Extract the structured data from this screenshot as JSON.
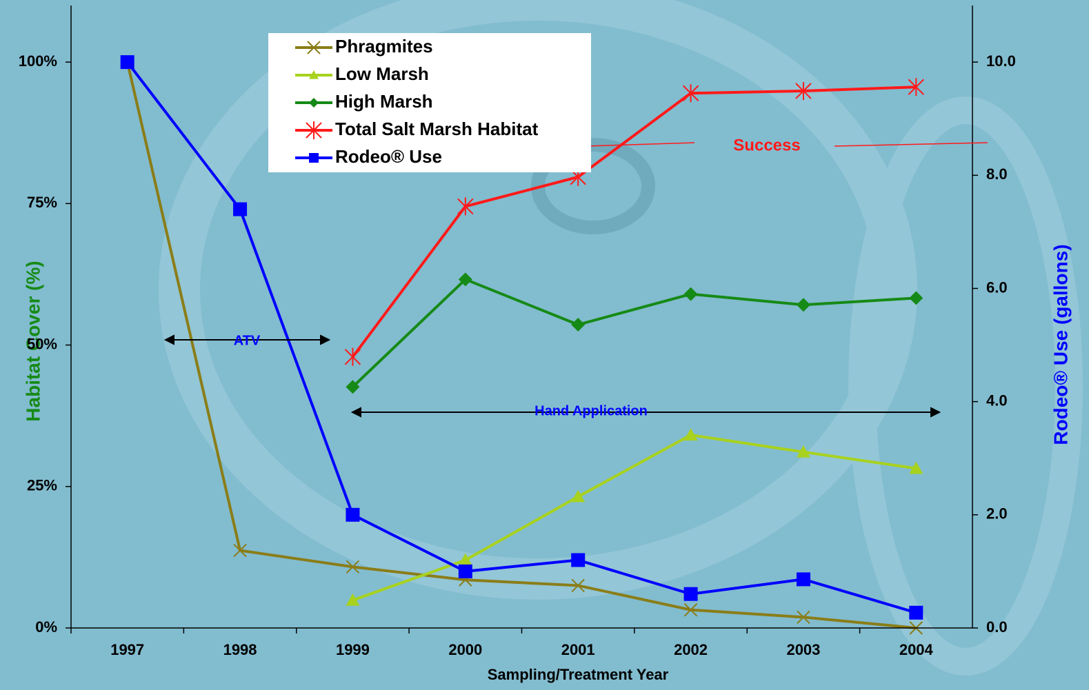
{
  "chart_data": {
    "type": "line",
    "x_label": "Sampling/Treatment Year",
    "y_label": "Habitat Cover (%)",
    "y2_label": "Rodeo® Use (gallons)",
    "categories": [
      "1997",
      "1998",
      "1999",
      "2000",
      "2001",
      "2002",
      "2003",
      "2004"
    ],
    "ylim": [
      0,
      110
    ],
    "yticks": [
      {
        "value": 0,
        "label": "0%"
      },
      {
        "value": 25,
        "label": "25%"
      },
      {
        "value": 50,
        "label": "50%"
      },
      {
        "value": 75,
        "label": "75%"
      },
      {
        "value": 100,
        "label": "100%"
      }
    ],
    "y2lim": [
      0,
      11
    ],
    "y2ticks": [
      {
        "value": 0,
        "label": "0.0"
      },
      {
        "value": 2,
        "label": "2.0"
      },
      {
        "value": 4,
        "label": "4.0"
      },
      {
        "value": 6,
        "label": "6.0"
      },
      {
        "value": 8,
        "label": "8.0"
      },
      {
        "value": 10,
        "label": "10.0"
      }
    ],
    "series": [
      {
        "name": "Phragmites",
        "color": "#8a7d18",
        "marker": "x",
        "values": [
          100,
          13.7,
          10.8,
          8.5,
          7.5,
          3.2,
          1.9,
          0
        ]
      },
      {
        "name": "Low Marsh",
        "color": "#a8d21e",
        "marker": "triangle",
        "values": [
          null,
          null,
          4.9,
          12.0,
          23.2,
          34.1,
          31.1,
          28.2
        ]
      },
      {
        "name": "High Marsh",
        "color": "#168a16",
        "marker": "diamond",
        "values": [
          null,
          null,
          42.6,
          61.6,
          53.6,
          59.0,
          57.1,
          58.3
        ]
      },
      {
        "name": "Total Salt Marsh Habitat",
        "color": "#ff1a1a",
        "marker": "asterisk",
        "values": [
          null,
          null,
          47.9,
          74.5,
          79.7,
          94.5,
          94.9,
          95.6
        ]
      },
      {
        "name": "Rodeo® Use",
        "color": "#0000ff",
        "marker": "square",
        "axis": "y2",
        "values": [
          10.0,
          7.4,
          2.0,
          1.0,
          1.2,
          0.6,
          0.86,
          0.27
        ]
      }
    ],
    "annotations": [
      "ATV",
      "Hand Application",
      "Success"
    ]
  }
}
